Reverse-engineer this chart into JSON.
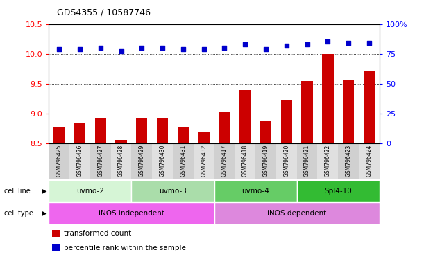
{
  "title": "GDS4355 / 10587746",
  "samples": [
    "GSM796425",
    "GSM796426",
    "GSM796427",
    "GSM796428",
    "GSM796429",
    "GSM796430",
    "GSM796431",
    "GSM796432",
    "GSM796417",
    "GSM796418",
    "GSM796419",
    "GSM796420",
    "GSM796421",
    "GSM796422",
    "GSM796423",
    "GSM796424"
  ],
  "bar_values": [
    8.78,
    8.84,
    8.93,
    8.56,
    8.93,
    8.93,
    8.77,
    8.7,
    9.03,
    9.4,
    8.88,
    9.22,
    9.55,
    10.0,
    9.57,
    9.72
  ],
  "dot_values": [
    79,
    79,
    80,
    77,
    80,
    80,
    79,
    79,
    80,
    83,
    79,
    82,
    83,
    85,
    84,
    84
  ],
  "ymin": 8.5,
  "ymax": 10.5,
  "y2min": 0,
  "y2max": 100,
  "yticks": [
    8.5,
    9.0,
    9.5,
    10.0,
    10.5
  ],
  "y2ticks": [
    0,
    25,
    50,
    75,
    100
  ],
  "cell_line_groups": [
    {
      "label": "uvmo-2",
      "start": 0,
      "end": 3,
      "color": "#d6f5d6"
    },
    {
      "label": "uvmo-3",
      "start": 4,
      "end": 7,
      "color": "#aaddaa"
    },
    {
      "label": "uvmo-4",
      "start": 8,
      "end": 11,
      "color": "#66cc66"
    },
    {
      "label": "Spl4-10",
      "start": 12,
      "end": 15,
      "color": "#33bb33"
    }
  ],
  "cell_type_groups": [
    {
      "label": "iNOS independent",
      "start": 0,
      "end": 7,
      "color": "#ee66ee"
    },
    {
      "label": "iNOS dependent",
      "start": 8,
      "end": 15,
      "color": "#dd88dd"
    }
  ],
  "bar_color": "#cc0000",
  "dot_color": "#0000cc",
  "bar_width": 0.55,
  "legend_items": [
    {
      "label": "transformed count",
      "color": "#cc0000"
    },
    {
      "label": "percentile rank within the sample",
      "color": "#0000cc"
    }
  ]
}
